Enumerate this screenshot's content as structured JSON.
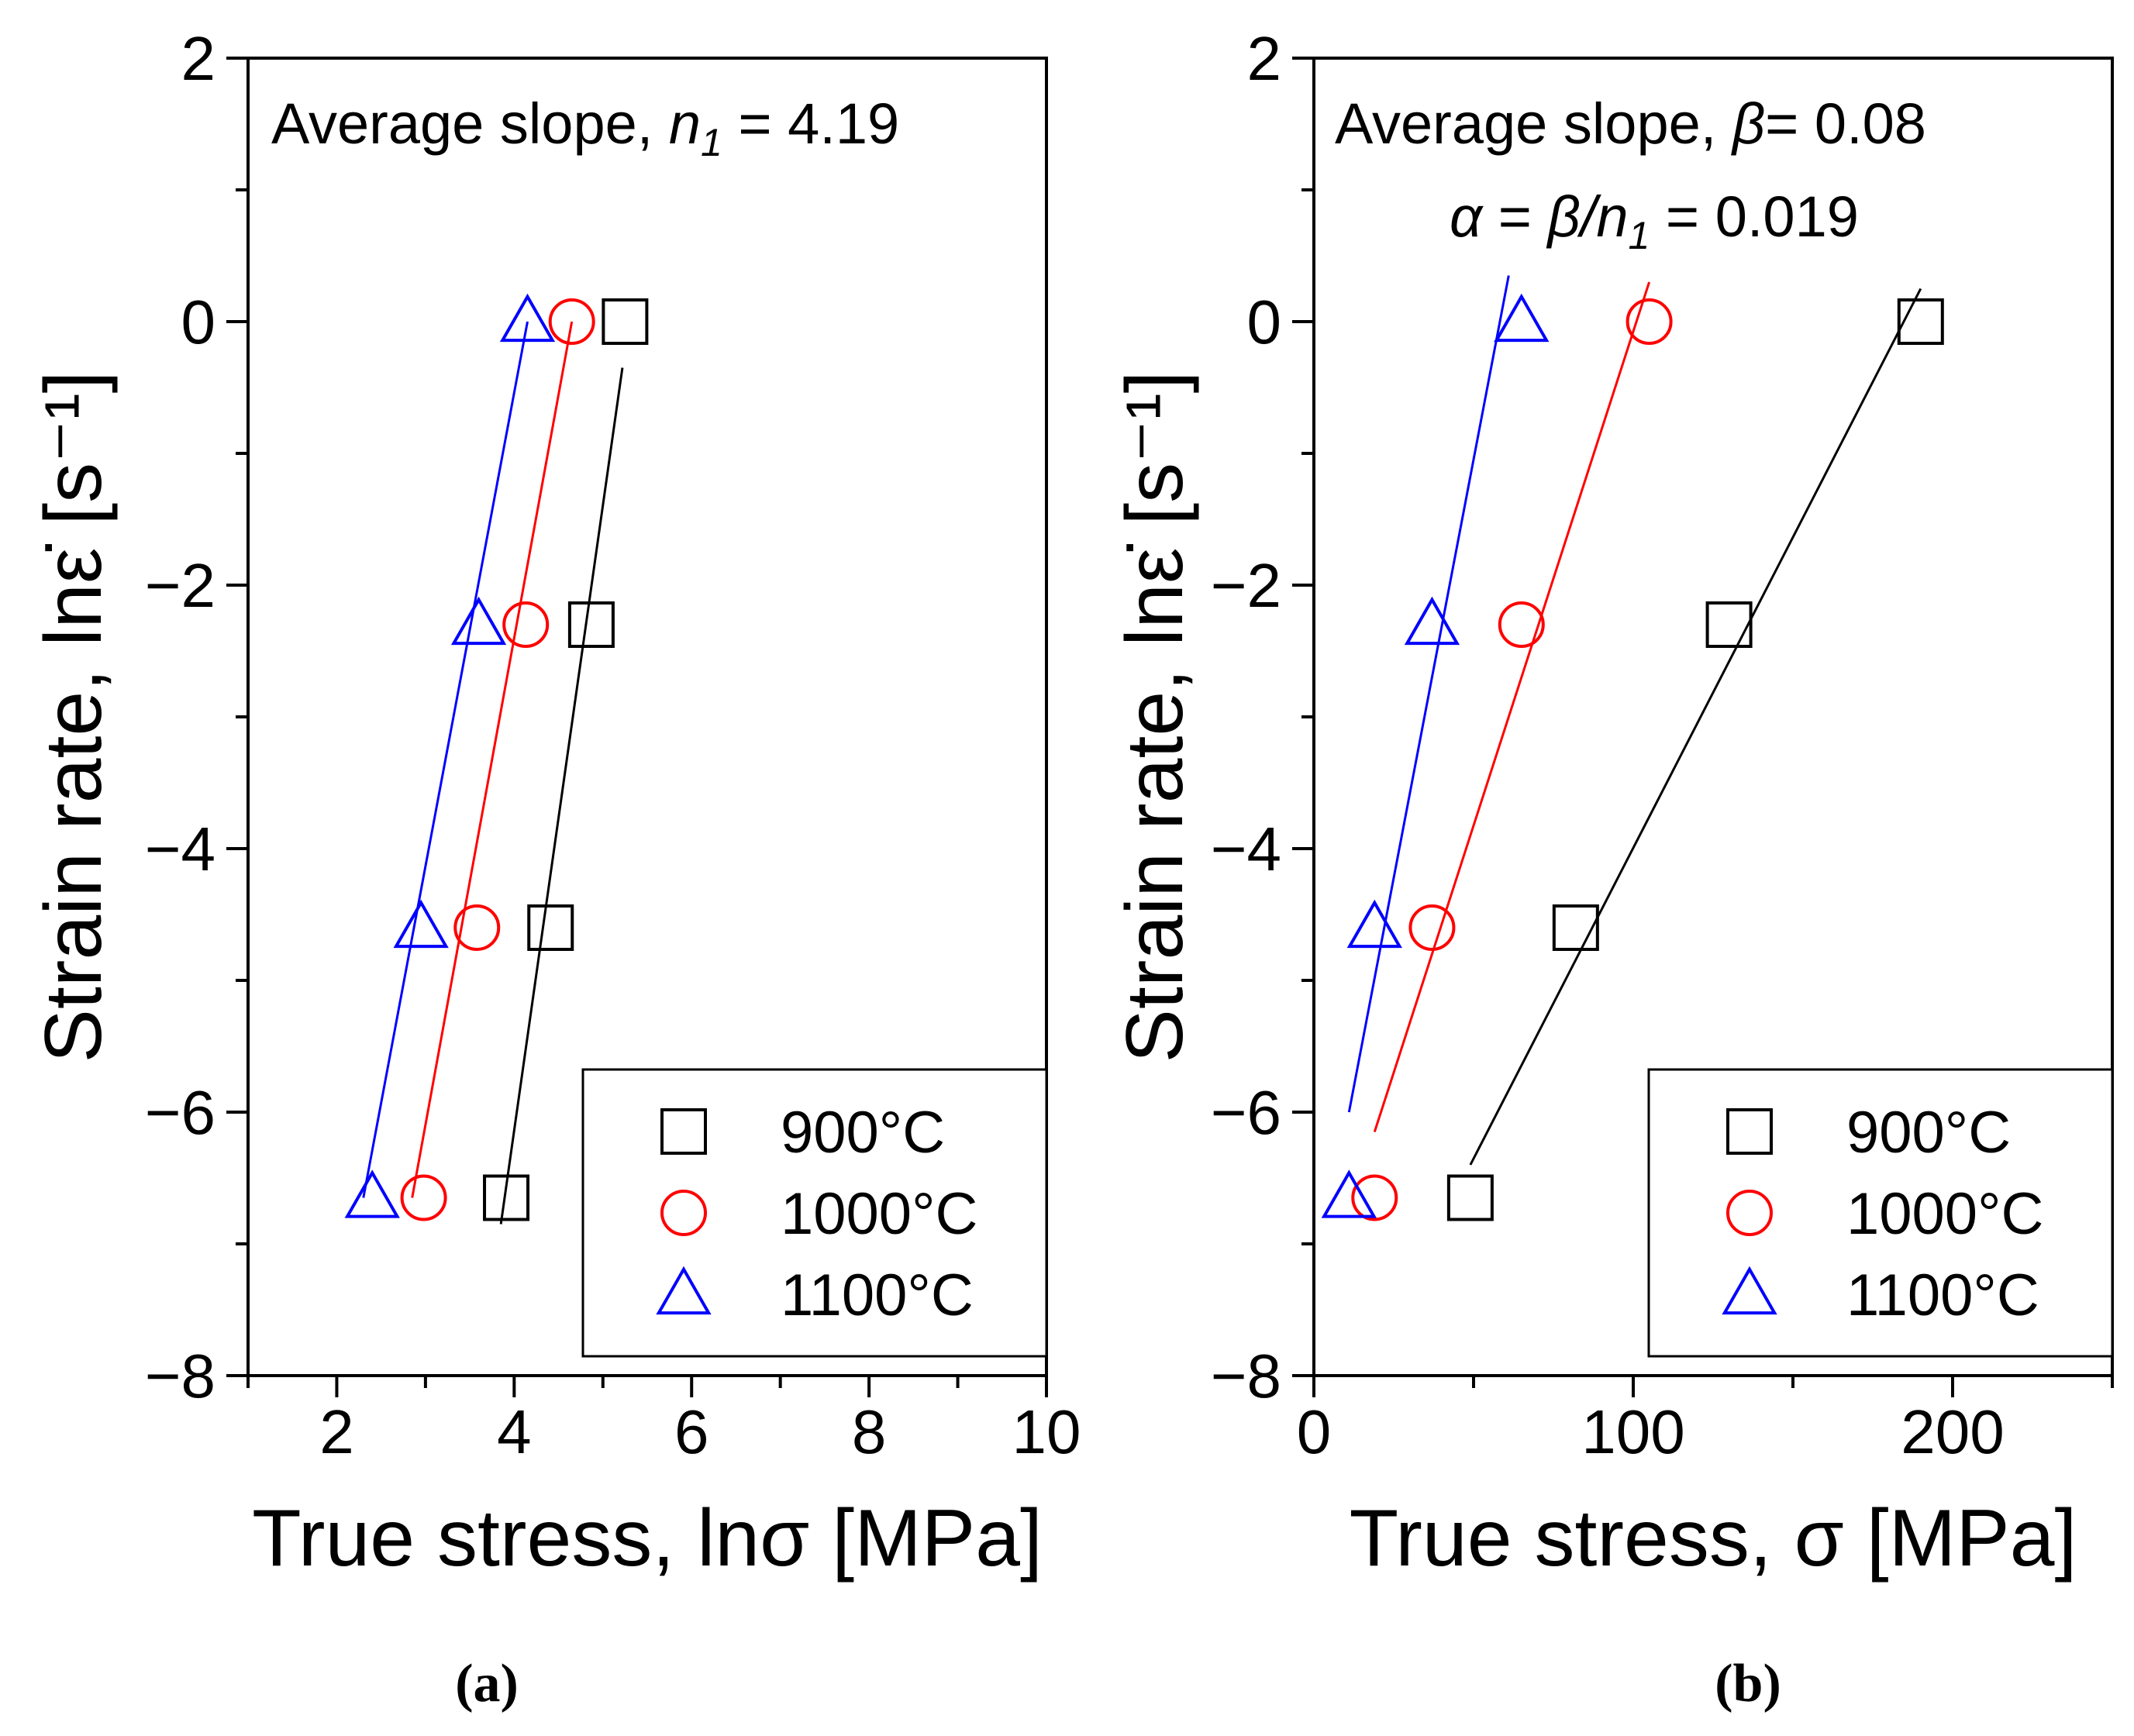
{
  "chart_data": [
    {
      "type": "scatter",
      "panel_label": "(a)",
      "xlabel": "True stress, lnσ [MPa]",
      "ylabel": "Strain rate, lnε̇ [s⁻¹]",
      "xlim": [
        1,
        10
      ],
      "ylim": [
        -8,
        2
      ],
      "x_ticks": [
        2,
        4,
        6,
        8,
        10
      ],
      "y_ticks": [
        -8,
        -6,
        -4,
        -2,
        0,
        2
      ],
      "annotation": {
        "text": "Average slope, ",
        "symbol": "n",
        "subscript": "1",
        "value": " = 4.19"
      },
      "legend_position": "bottom-right",
      "series": [
        {
          "name": "900°C",
          "color": "#000000",
          "marker": "square",
          "x": [
            5.25,
            4.87,
            4.41,
            3.91
          ],
          "y": [
            0,
            -2.3,
            -4.6,
            -6.65
          ],
          "fit": {
            "x": [
              3.85,
              5.22
            ],
            "y": [
              -6.85,
              -0.35
            ]
          }
        },
        {
          "name": "1000°C",
          "color": "#ff0000",
          "marker": "circle",
          "x": [
            4.65,
            4.13,
            3.58,
            2.98
          ],
          "y": [
            0,
            -2.3,
            -4.6,
            -6.65
          ],
          "fit": {
            "x": [
              2.85,
              4.65
            ],
            "y": [
              -6.65,
              0
            ]
          }
        },
        {
          "name": "1100°C",
          "color": "#0000ff",
          "marker": "triangle",
          "x": [
            4.15,
            3.6,
            2.95,
            2.4
          ],
          "y": [
            0,
            -2.3,
            -4.6,
            -6.65
          ],
          "fit": {
            "x": [
              2.3,
              4.15
            ],
            "y": [
              -6.65,
              0
            ]
          }
        }
      ]
    },
    {
      "type": "scatter",
      "panel_label": "(b)",
      "xlabel": "True stress, σ [MPa]",
      "ylabel": "Strain rate, lnε̇ [s⁻¹]",
      "xlim": [
        0,
        250
      ],
      "ylim": [
        -8,
        2
      ],
      "x_ticks": [
        0,
        100,
        200
      ],
      "y_ticks": [
        -8,
        -6,
        -4,
        -2,
        0,
        2
      ],
      "annotation": {
        "text": "Average slope, ",
        "symbol": "β",
        "value": "= 0.08"
      },
      "annotation2": {
        "alpha": "α",
        "eq": " = ",
        "expr": "β/n",
        "subscript": "1",
        "value": " = 0.019"
      },
      "legend_position": "bottom-right",
      "series": [
        {
          "name": "900°C",
          "color": "#000000",
          "marker": "square",
          "x": [
            190,
            130,
            82,
            49
          ],
          "y": [
            0,
            -2.3,
            -4.6,
            -6.65
          ],
          "fit": {
            "x": [
              49,
              190
            ],
            "y": [
              -6.4,
              0.25
            ]
          }
        },
        {
          "name": "1000°C",
          "color": "#ff0000",
          "marker": "circle",
          "x": [
            105,
            65,
            37,
            19
          ],
          "y": [
            0,
            -2.3,
            -4.6,
            -6.65
          ],
          "fit": {
            "x": [
              19,
              105
            ],
            "y": [
              -6.15,
              0.3
            ]
          }
        },
        {
          "name": "1100°C",
          "color": "#0000ff",
          "marker": "triangle",
          "x": [
            65,
            37,
            19,
            11
          ],
          "y": [
            0,
            -2.3,
            -4.6,
            -6.65
          ],
          "fit": {
            "x": [
              11,
              61
            ],
            "y": [
              -6.0,
              0.35
            ]
          }
        }
      ]
    }
  ]
}
